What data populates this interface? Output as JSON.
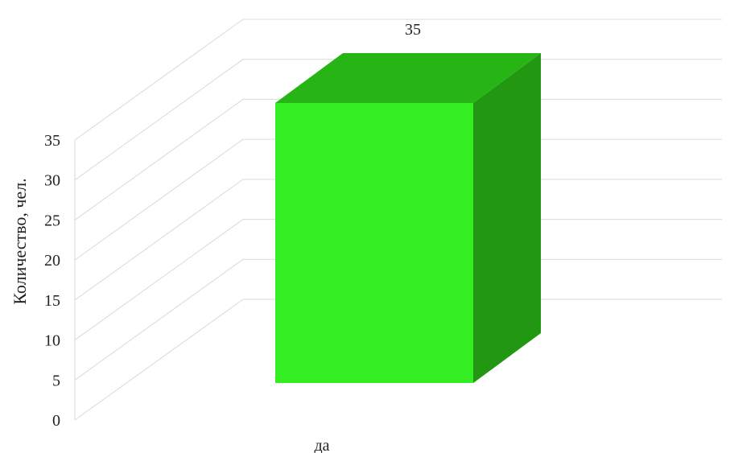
{
  "chart_data": {
    "type": "bar",
    "style": "3d-column",
    "categories": [
      "да"
    ],
    "values": [
      35
    ],
    "data_labels": [
      "35"
    ],
    "ylabel": "Количество, чел.",
    "ylim": [
      0,
      35
    ],
    "yticks": [
      0,
      5,
      10,
      15,
      20,
      25,
      30,
      35
    ],
    "grid": true,
    "legend": "none",
    "colors": {
      "bar_front": "#33ee22",
      "bar_top": "#27b516",
      "bar_side": "#219712",
      "grid": "#d9d9d9"
    }
  }
}
